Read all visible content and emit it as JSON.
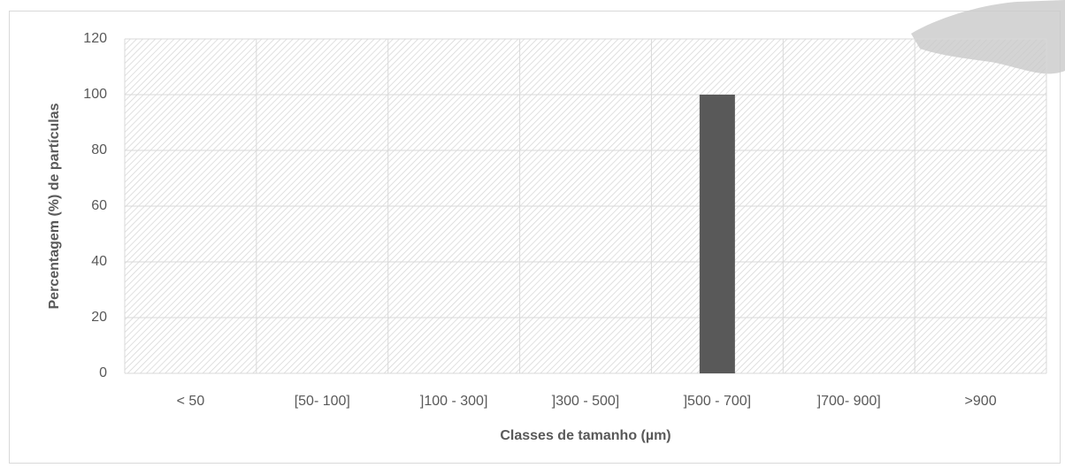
{
  "chart_data": {
    "type": "bar",
    "categories": [
      "< 50",
      "[50- 100]",
      "]100 - 300]",
      "]300 - 500]",
      "]500 - 700]",
      "]700- 900]",
      ">900"
    ],
    "values": [
      0,
      0,
      0,
      0,
      100,
      0,
      0
    ],
    "color": "#595959",
    "xlabel": "Classes de tamanho (µm)",
    "ylabel": "Percentagem (%) de partículas",
    "ylim": [
      0,
      120
    ],
    "yticks": [
      0,
      20,
      40,
      60,
      80,
      100,
      120
    ],
    "grid": true
  }
}
